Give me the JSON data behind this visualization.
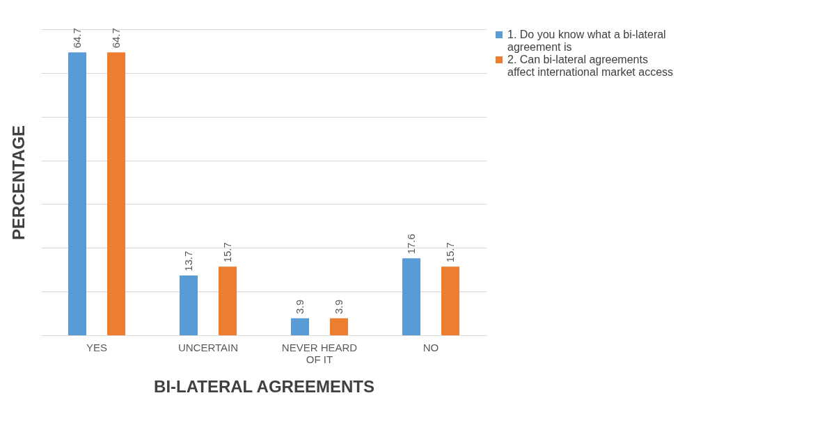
{
  "chart_data": {
    "type": "bar",
    "xlabel": "BI-LATERAL AGREEMENTS",
    "ylabel": "PERCENTAGE",
    "categories": [
      "YES",
      "UNCERTAIN",
      "NEVER HEARD OF IT",
      "NO"
    ],
    "series": [
      {
        "name": "1. Do you know what a bi-lateral agreement is",
        "color": "#5b9bd5",
        "values": [
          64.7,
          13.7,
          3.9,
          17.6
        ]
      },
      {
        "name": "2. Can bi-lateral agreements affect international market access",
        "color": "#ed7d31",
        "values": [
          64.7,
          15.7,
          3.9,
          15.7
        ]
      }
    ],
    "ylim": [
      0,
      70
    ],
    "yticks": [
      {
        "value": 0,
        "label": null
      },
      {
        "value": 10,
        "label": null
      },
      {
        "value": 20,
        "label": null
      },
      {
        "value": 30,
        "label": null
      },
      {
        "value": 40,
        "label": null
      },
      {
        "value": 50,
        "label": null
      },
      {
        "value": 60,
        "label": null
      },
      {
        "value": 70,
        "label": null
      }
    ],
    "tick_labels": "x",
    "grid": "y",
    "legend": "top right",
    "data_labels": true
  }
}
